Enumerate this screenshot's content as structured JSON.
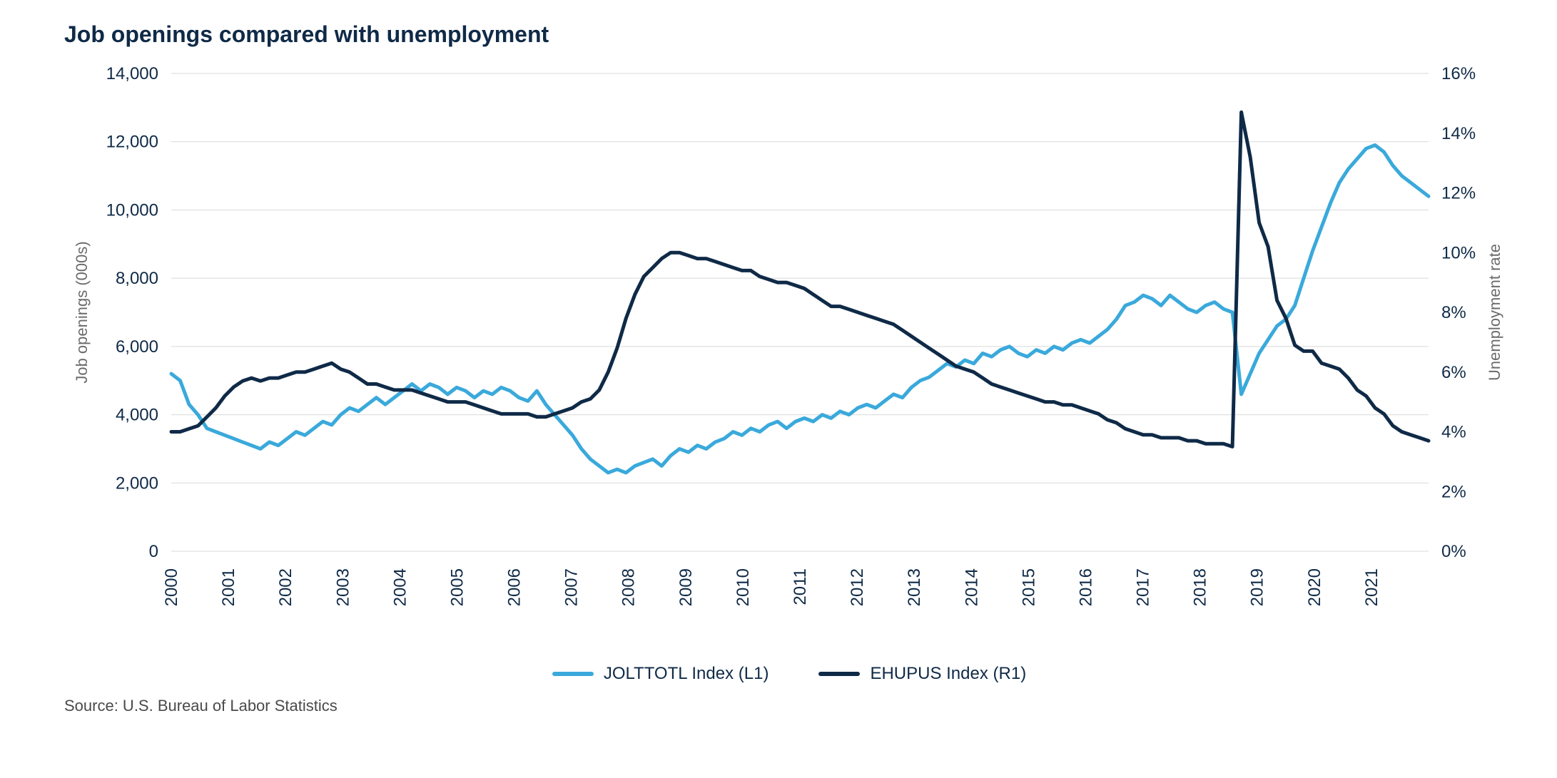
{
  "chart": {
    "type": "line-dual-axis",
    "title": "Job openings compared with unemployment",
    "title_fontsize": 32,
    "title_color": "#0f2a47",
    "source_text": "Source: U.S. Bureau of Labor Statistics",
    "source_fontsize": 22,
    "source_color": "#4a4a4a",
    "background_color": "#ffffff",
    "grid_color": "#d9d9d9",
    "axis_label_color": "#6b6b6b",
    "tick_label_color": "#0f2a47",
    "tick_fontsize": 24,
    "axis_title_fontsize": 22,
    "line_width": 5,
    "plot": {
      "x_categories": [
        "2000",
        "2001",
        "2002",
        "2003",
        "2004",
        "2005",
        "2006",
        "2007",
        "2008",
        "2009",
        "2010",
        "2011",
        "2012",
        "2013",
        "2014",
        "2015",
        "2016",
        "2017",
        "2018",
        "2019",
        "2020",
        "2021"
      ],
      "left_axis": {
        "title": "Job openings (000s)",
        "min": 0,
        "max": 14000,
        "tick_step": 2000,
        "tick_labels": [
          "0",
          "2,000",
          "4,000",
          "6,000",
          "8,000",
          "10,000",
          "12,000",
          "14,000"
        ]
      },
      "right_axis": {
        "title": "Unemployment rate",
        "min": 0,
        "max": 16,
        "tick_step": 2,
        "tick_labels": [
          "0%",
          "2%",
          "4%",
          "6%",
          "8%",
          "10%",
          "12%",
          "14%",
          "16%"
        ]
      }
    },
    "series": [
      {
        "name": "JOLTTOTL Index  (L1)",
        "axis": "left",
        "color": "#3aa9db",
        "data": [
          5200,
          5000,
          4300,
          4000,
          3600,
          3500,
          3400,
          3300,
          3200,
          3100,
          3000,
          3200,
          3100,
          3300,
          3500,
          3400,
          3600,
          3800,
          3700,
          4000,
          4200,
          4100,
          4300,
          4500,
          4300,
          4500,
          4700,
          4900,
          4700,
          4900,
          4800,
          4600,
          4800,
          4700,
          4500,
          4700,
          4600,
          4800,
          4700,
          4500,
          4400,
          4700,
          4300,
          4000,
          3700,
          3400,
          3000,
          2700,
          2500,
          2300,
          2400,
          2300,
          2500,
          2600,
          2700,
          2500,
          2800,
          3000,
          2900,
          3100,
          3000,
          3200,
          3300,
          3500,
          3400,
          3600,
          3500,
          3700,
          3800,
          3600,
          3800,
          3900,
          3800,
          4000,
          3900,
          4100,
          4000,
          4200,
          4300,
          4200,
          4400,
          4600,
          4500,
          4800,
          5000,
          5100,
          5300,
          5500,
          5400,
          5600,
          5500,
          5800,
          5700,
          5900,
          6000,
          5800,
          5700,
          5900,
          5800,
          6000,
          5900,
          6100,
          6200,
          6100,
          6300,
          6500,
          6800,
          7200,
          7300,
          7500,
          7400,
          7200,
          7500,
          7300,
          7100,
          7000,
          7200,
          7300,
          7100,
          7000,
          4600,
          5200,
          5800,
          6200,
          6600,
          6800,
          7200,
          8000,
          8800,
          9500,
          10200,
          10800,
          11200,
          11500,
          11800,
          11900,
          11700,
          11300,
          11000,
          10800,
          10600,
          10400
        ]
      },
      {
        "name": "EHUPUS Index  (R1)",
        "axis": "right",
        "color": "#0f2a47",
        "data": [
          4.0,
          4.0,
          4.1,
          4.2,
          4.5,
          4.8,
          5.2,
          5.5,
          5.7,
          5.8,
          5.7,
          5.8,
          5.8,
          5.9,
          6.0,
          6.0,
          6.1,
          6.2,
          6.3,
          6.1,
          6.0,
          5.8,
          5.6,
          5.6,
          5.5,
          5.4,
          5.4,
          5.4,
          5.3,
          5.2,
          5.1,
          5.0,
          5.0,
          5.0,
          4.9,
          4.8,
          4.7,
          4.6,
          4.6,
          4.6,
          4.6,
          4.5,
          4.5,
          4.6,
          4.7,
          4.8,
          5.0,
          5.1,
          5.4,
          6.0,
          6.8,
          7.8,
          8.6,
          9.2,
          9.5,
          9.8,
          10.0,
          10.0,
          9.9,
          9.8,
          9.8,
          9.7,
          9.6,
          9.5,
          9.4,
          9.4,
          9.2,
          9.1,
          9.0,
          9.0,
          8.9,
          8.8,
          8.6,
          8.4,
          8.2,
          8.2,
          8.1,
          8.0,
          7.9,
          7.8,
          7.7,
          7.6,
          7.4,
          7.2,
          7.0,
          6.8,
          6.6,
          6.4,
          6.2,
          6.1,
          6.0,
          5.8,
          5.6,
          5.5,
          5.4,
          5.3,
          5.2,
          5.1,
          5.0,
          5.0,
          4.9,
          4.9,
          4.8,
          4.7,
          4.6,
          4.4,
          4.3,
          4.1,
          4.0,
          3.9,
          3.9,
          3.8,
          3.8,
          3.8,
          3.7,
          3.7,
          3.6,
          3.6,
          3.6,
          3.5,
          14.7,
          13.2,
          11.0,
          10.2,
          8.4,
          7.8,
          6.9,
          6.7,
          6.7,
          6.3,
          6.2,
          6.1,
          5.8,
          5.4,
          5.2,
          4.8,
          4.6,
          4.2,
          4.0,
          3.9,
          3.8,
          3.7
        ]
      }
    ],
    "legend": {
      "fontsize": 24,
      "text_color": "#0f2a47"
    }
  }
}
